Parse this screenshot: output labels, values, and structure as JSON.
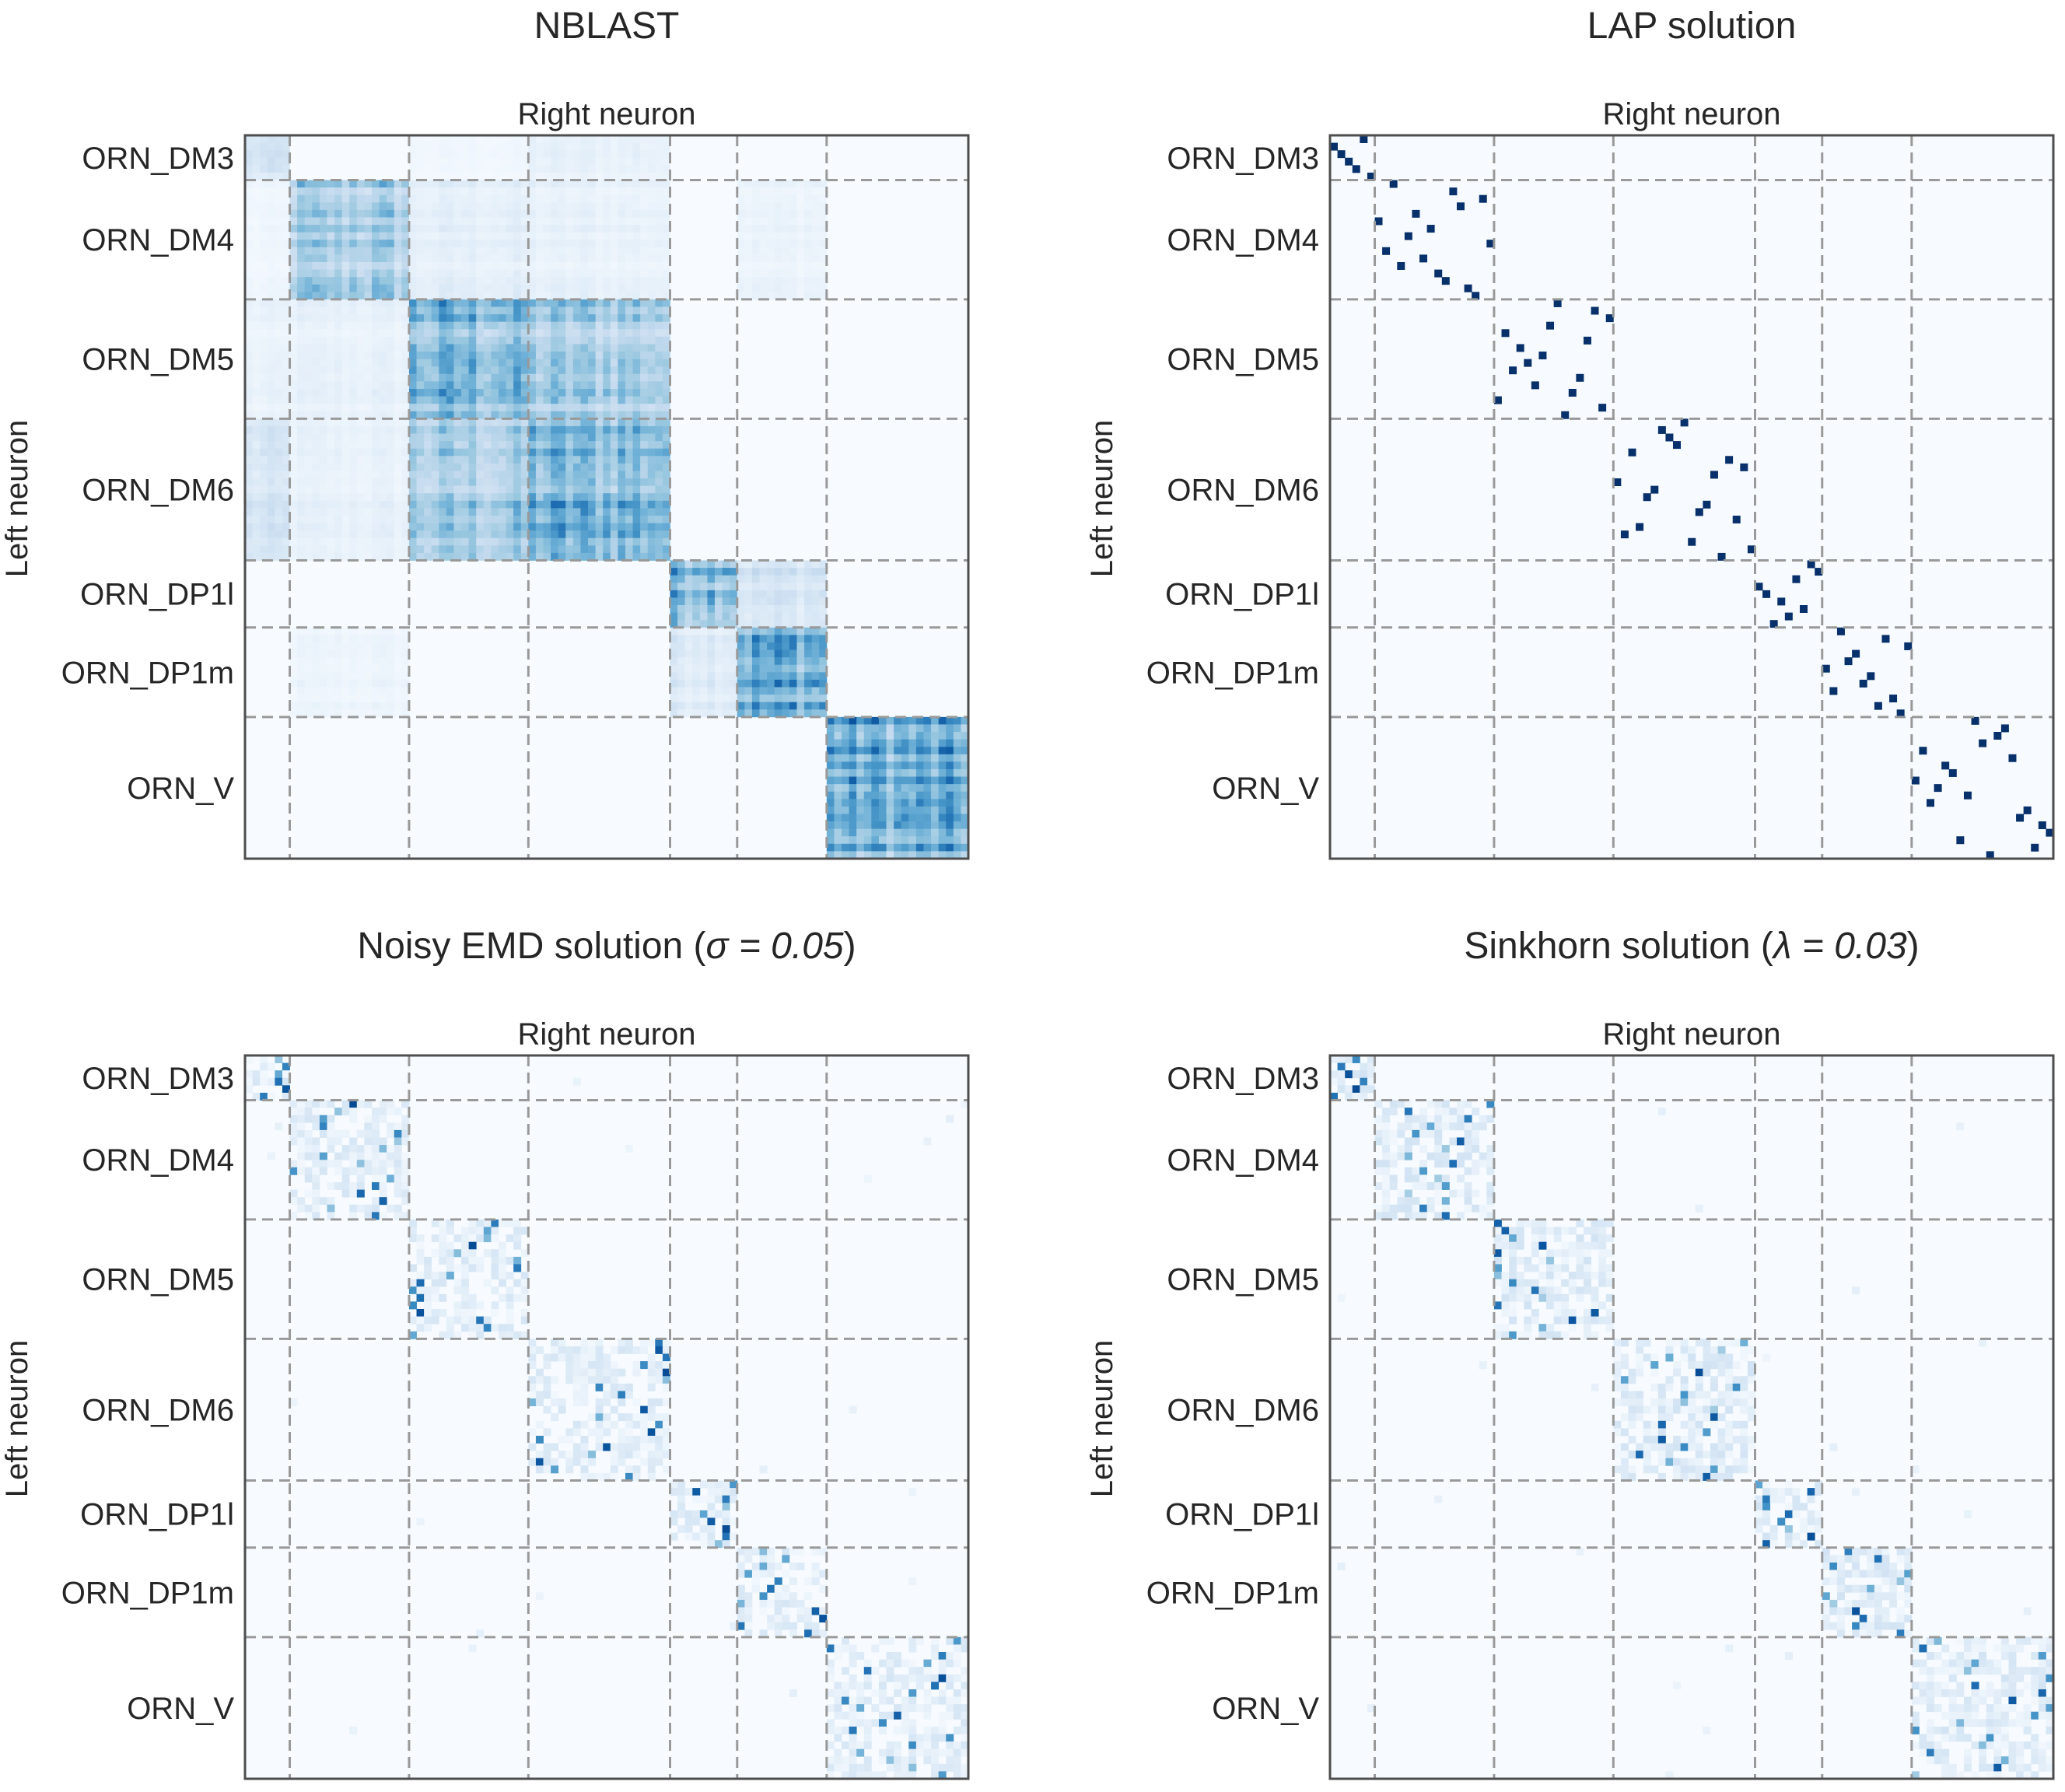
{
  "chart_data": [
    {
      "type": "heatmap",
      "title": "NBLAST",
      "xlabel": "Right neuron",
      "ylabel": "Left neuron",
      "categories": [
        "ORN_DM3",
        "ORN_DM4",
        "ORN_DM5",
        "ORN_DM6",
        "ORN_DP1l",
        "ORN_DP1m",
        "ORN_V"
      ],
      "group_sizes": [
        6,
        16,
        16,
        19,
        9,
        12,
        19
      ],
      "colormap": "Blues",
      "grid": "dashed block boundaries",
      "block_intensity": [
        [
          0.25,
          0.0,
          0.05,
          0.12,
          0.0,
          0.0,
          0.0
        ],
        [
          0.06,
          0.55,
          0.15,
          0.12,
          0.0,
          0.1,
          0.0
        ],
        [
          0.1,
          0.12,
          0.7,
          0.55,
          0.0,
          0.0,
          0.0
        ],
        [
          0.25,
          0.12,
          0.55,
          0.75,
          0.0,
          0.0,
          0.0
        ],
        [
          0.0,
          0.0,
          0.0,
          0.0,
          0.85,
          0.3,
          0.0
        ],
        [
          0.0,
          0.08,
          0.0,
          0.0,
          0.22,
          0.85,
          0.0
        ],
        [
          0.0,
          0.0,
          0.0,
          0.0,
          0.0,
          0.0,
          0.8
        ]
      ]
    },
    {
      "type": "heatmap",
      "title": "LAP solution",
      "xlabel": "Right neuron",
      "ylabel": "Left neuron",
      "categories": [
        "ORN_DM3",
        "ORN_DM4",
        "ORN_DM5",
        "ORN_DM6",
        "ORN_DP1l",
        "ORN_DP1m",
        "ORN_V"
      ],
      "colormap": "Blues",
      "values": "permutation matrix (one assignment per row)"
    },
    {
      "type": "heatmap",
      "title": "Noisy EMD solution (σ = 0.05)",
      "xlabel": "Right neuron",
      "ylabel": "Left neuron",
      "categories": [
        "ORN_DM3",
        "ORN_DM4",
        "ORN_DM5",
        "ORN_DM6",
        "ORN_DP1l",
        "ORN_DP1m",
        "ORN_V"
      ],
      "colormap": "Blues",
      "values": "soft assignment concentrated in diagonal blocks"
    },
    {
      "type": "heatmap",
      "title": "Sinkhorn solution (λ = 0.03)",
      "xlabel": "Right neuron",
      "ylabel": "Left neuron",
      "categories": [
        "ORN_DM3",
        "ORN_DM4",
        "ORN_DM5",
        "ORN_DM6",
        "ORN_DP1l",
        "ORN_DP1m",
        "ORN_V"
      ],
      "colormap": "Blues",
      "values": "soft assignment concentrated in diagonal blocks"
    }
  ],
  "panels": [
    {
      "title_main": "NBLAST",
      "title_param": "",
      "title_close": "",
      "xlabel": "Right neuron",
      "ylabel": "Left neuron",
      "row_labels": [
        "ORN_DM3",
        "ORN_DM4",
        "ORN_DM5",
        "ORN_DM6",
        "ORN_DP1l",
        "ORN_DP1m",
        "ORN_V"
      ]
    },
    {
      "title_main": "LAP solution",
      "title_param": "",
      "title_close": "",
      "xlabel": "Right neuron",
      "ylabel": "Left neuron",
      "row_labels": [
        "ORN_DM3",
        "ORN_DM4",
        "ORN_DM5",
        "ORN_DM6",
        "ORN_DP1l",
        "ORN_DP1m",
        "ORN_V"
      ]
    },
    {
      "title_main": "Noisy EMD solution (",
      "title_param": "σ = 0.05",
      "title_close": ")",
      "xlabel": "Right neuron",
      "ylabel": "Left neuron",
      "row_labels": [
        "ORN_DM3",
        "ORN_DM4",
        "ORN_DM5",
        "ORN_DM6",
        "ORN_DP1l",
        "ORN_DP1m",
        "ORN_V"
      ]
    },
    {
      "title_main": "Sinkhorn solution (",
      "title_param": "λ = 0.03",
      "title_close": ")",
      "xlabel": "Right neuron",
      "ylabel": "Left neuron",
      "row_labels": [
        "ORN_DM3",
        "ORN_DM4",
        "ORN_DM5",
        "ORN_DM6",
        "ORN_DP1l",
        "ORN_DP1m",
        "ORN_V"
      ]
    }
  ],
  "colors": {
    "background": "#ffffff",
    "heatmap_base": "#f7fbff",
    "heatmap_max": "#08306b",
    "grid_line": "#999999",
    "frame": "#4d4d4d",
    "text": "#262626"
  }
}
